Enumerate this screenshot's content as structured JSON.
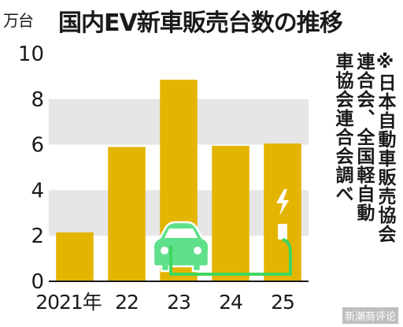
{
  "colors": {
    "bar": "#e3b400",
    "band": "#e6e6e6",
    "car_body": "#5fe08a",
    "cable": "#3fd65f",
    "charger_bolt": "#ffffff",
    "axis": "#1a1a1a"
  },
  "header": {
    "unit": "万台",
    "title": "国内EV新車販売台数の推移"
  },
  "source_note": {
    "columns": [
      "※日本自動車販売協会",
      "連合会、全国軽自動",
      "車協会連合会調べ"
    ]
  },
  "watermark": "新潮商评论",
  "icons": [
    "electric-car-icon",
    "charging-station-icon",
    "lightning-bolt-icon",
    "charging-cable-icon"
  ],
  "chart_data": {
    "type": "bar",
    "title": "国内EV新車販売台数の推移",
    "ylabel": "万台",
    "xlabel": "",
    "categories": [
      "2021年",
      "22",
      "23",
      "24",
      "25"
    ],
    "values": [
      2.15,
      5.9,
      8.85,
      5.95,
      6.05
    ],
    "ylim": [
      0,
      10
    ],
    "yticks": [
      0,
      2,
      4,
      6,
      8,
      10
    ],
    "grid": "alternating horizontal bands",
    "legend": "none"
  }
}
